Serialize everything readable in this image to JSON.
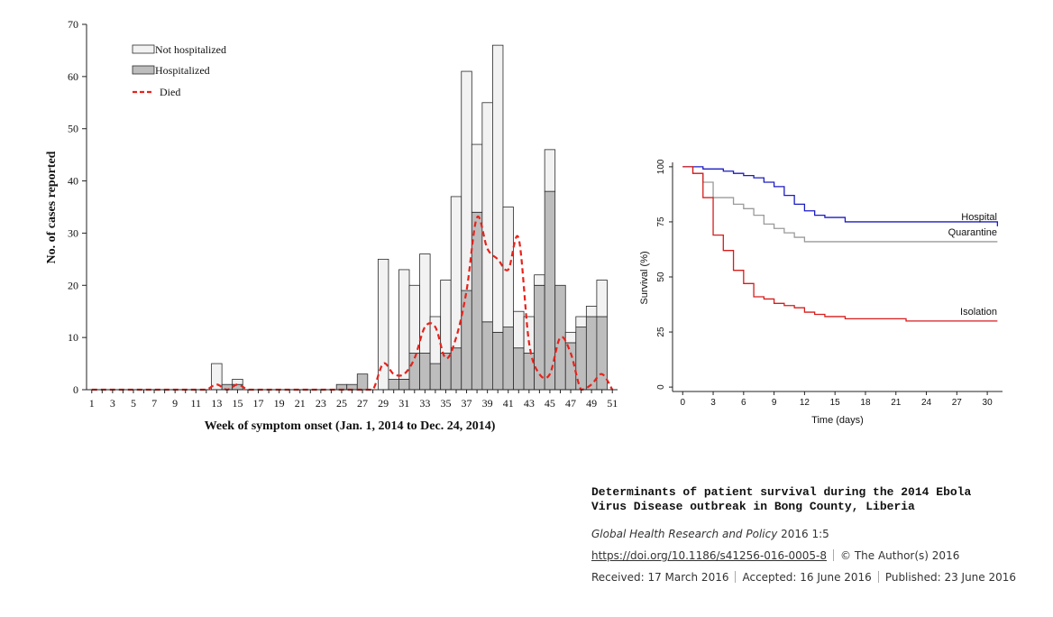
{
  "chart_data": [
    {
      "type": "bar",
      "stacked": true,
      "title": "",
      "xlabel": "Week of symptom onset (Jan. 1, 2014 to Dec. 24, 2014)",
      "ylabel": "No. of cases reported",
      "ylim": [
        0,
        70
      ],
      "yticks": [
        0,
        10,
        20,
        30,
        40,
        50,
        60,
        70
      ],
      "x": [
        1,
        2,
        3,
        4,
        5,
        6,
        7,
        8,
        9,
        10,
        11,
        12,
        13,
        14,
        15,
        16,
        17,
        18,
        19,
        20,
        21,
        22,
        23,
        24,
        25,
        26,
        27,
        28,
        29,
        30,
        31,
        32,
        33,
        34,
        35,
        36,
        37,
        38,
        39,
        40,
        41,
        42,
        43,
        44,
        45,
        46,
        47,
        48,
        49,
        50,
        51
      ],
      "xtick_labels": [
        "1",
        "3",
        "5",
        "7",
        "9",
        "11",
        "13",
        "15",
        "17",
        "19",
        "21",
        "23",
        "25",
        "27",
        "29",
        "31",
        "33",
        "35",
        "37",
        "39",
        "41",
        "43",
        "45",
        "47",
        "49",
        "51"
      ],
      "legend_placement": "top-left",
      "series": [
        {
          "name": "Hospitalized",
          "kind": "bar",
          "color": "#bdbdbd",
          "values": [
            0,
            0,
            0,
            0,
            0,
            0,
            0,
            0,
            0,
            0,
            0,
            0,
            0,
            1,
            1,
            0,
            0,
            0,
            0,
            0,
            0,
            0,
            0,
            0,
            1,
            1,
            3,
            0,
            0,
            2,
            2,
            7,
            7,
            5,
            7,
            8,
            19,
            34,
            13,
            11,
            12,
            8,
            7,
            20,
            38,
            20,
            9,
            12,
            14,
            14,
            0
          ]
        },
        {
          "name": "Not hospitalized",
          "kind": "bar",
          "color": "#f2f2f2",
          "values": [
            0,
            0,
            0,
            0,
            0,
            0,
            0,
            0,
            0,
            0,
            0,
            0,
            5,
            0,
            1,
            0,
            0,
            0,
            0,
            0,
            0,
            0,
            0,
            0,
            0,
            0,
            0,
            0,
            25,
            0,
            21,
            13,
            19,
            9,
            14,
            29,
            42,
            13,
            42,
            55,
            23,
            7,
            7,
            2,
            8,
            0,
            2,
            2,
            2,
            7,
            0
          ]
        },
        {
          "name": "Died",
          "kind": "line",
          "color": "#e8221b",
          "dashed": true,
          "values": [
            0,
            0,
            0,
            0,
            0,
            0,
            0,
            0,
            0,
            0,
            0,
            0,
            1,
            0,
            1,
            0,
            0,
            0,
            0,
            0,
            0,
            0,
            0,
            0,
            0,
            0,
            0,
            0,
            5,
            3,
            3,
            6,
            12,
            12,
            6,
            10,
            19,
            33,
            27,
            25,
            23,
            29,
            9,
            3,
            3,
            10,
            7,
            0,
            1,
            3,
            0
          ]
        }
      ]
    },
    {
      "type": "line",
      "step": true,
      "title": "",
      "xlabel": "Time (days)",
      "ylabel": "Survival (%)",
      "xlim": [
        -1,
        31.5
      ],
      "ylim": [
        -2,
        102
      ],
      "xticks": [
        0,
        3,
        6,
        9,
        12,
        15,
        18,
        21,
        24,
        27,
        30
      ],
      "yticks": [
        0,
        25,
        50,
        75,
        100
      ],
      "series": [
        {
          "name": "Hospital",
          "color": "#1b1bc4",
          "x": [
            0,
            1,
            2,
            3,
            4,
            5,
            6,
            7,
            8,
            9,
            10,
            11,
            12,
            13,
            14,
            16,
            31
          ],
          "y": [
            100,
            100,
            99,
            99,
            98,
            97,
            96,
            95,
            93,
            91,
            87,
            83,
            80,
            78,
            77,
            75,
            73
          ]
        },
        {
          "name": "Quarantine",
          "color": "#9a9a9a",
          "x": [
            0,
            1,
            2,
            3,
            4,
            5,
            6,
            7,
            8,
            9,
            10,
            11,
            12,
            31
          ],
          "y": [
            100,
            97,
            93,
            86,
            86,
            83,
            81,
            78,
            74,
            72,
            70,
            68,
            66,
            66
          ]
        },
        {
          "name": "Isolation",
          "color": "#d61c1c",
          "x": [
            0,
            1,
            2,
            3,
            4,
            5,
            6,
            7,
            8,
            9,
            10,
            11,
            12,
            13,
            14,
            16,
            22,
            31
          ],
          "y": [
            100,
            97,
            86,
            69,
            62,
            53,
            47,
            41,
            40,
            38,
            37,
            36,
            34,
            33,
            32,
            31,
            30,
            30
          ]
        }
      ]
    }
  ],
  "citation": {
    "title_line1": "Determinants of patient survival during the 2014 Ebola",
    "title_line2": "Virus Disease outbreak in Bong County, Liberia",
    "journal": "Global Health Research and Policy",
    "volume": "2016  1:5",
    "doi": "https://doi.org/10.1186/s41256-016-0005-8",
    "copyright": "© The Author(s) 2016",
    "received": "Received: 17 March 2016",
    "accepted": "Accepted: 16 June 2016",
    "published": "Published: 23 June 2016"
  }
}
